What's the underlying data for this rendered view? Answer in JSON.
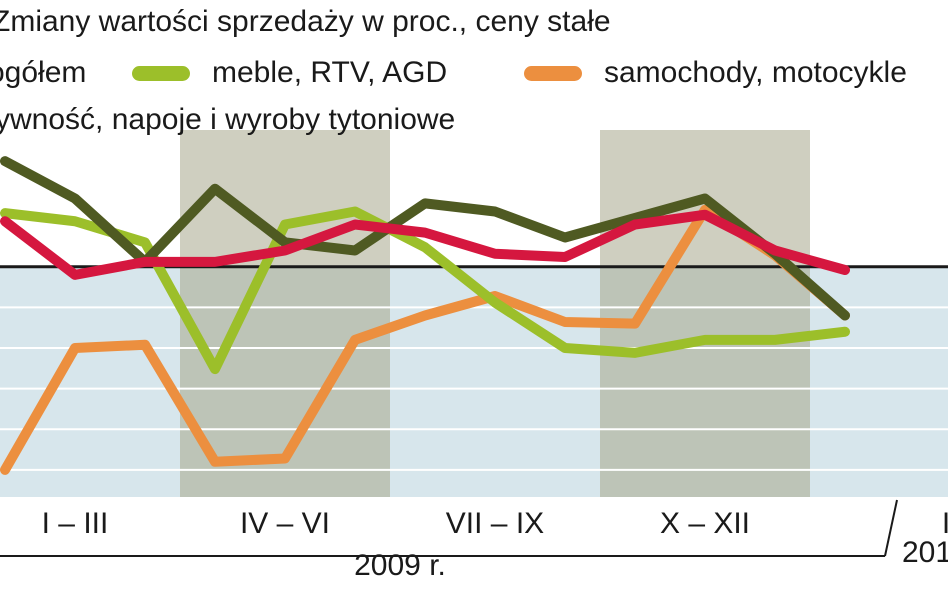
{
  "title": "Zmiany wartości sprzedaży w proc., ceny stałe",
  "legend": [
    {
      "label": "ogółem",
      "color": "#4f5a22"
    },
    {
      "label": "meble, RTV, AGD",
      "color": "#9cbf2a"
    },
    {
      "label": "samochody, motocykle",
      "color": "#ec8f3f"
    },
    {
      "label": "żywność, napoje i wyroby tytoniowe",
      "color": "#d5173f"
    }
  ],
  "colors": {
    "plot_bg": "#d7e6ec",
    "band_bg": "#a8a88c",
    "gridline": "#ffffff",
    "zero_line": "#1a1a1a"
  },
  "chart_data": {
    "type": "line",
    "title": "Zmiany wartości sprzedaży w proc., ceny stałe",
    "xlabel": "",
    "ylabel": "",
    "x": [
      1,
      2,
      3,
      4,
      5,
      6,
      7,
      8,
      9,
      10,
      11,
      12,
      13
    ],
    "x_groups": [
      {
        "label": "I – III",
        "months": [
          1,
          3
        ]
      },
      {
        "label": "IV – VI",
        "months": [
          4,
          6
        ]
      },
      {
        "label": "VII – IX",
        "months": [
          7,
          9
        ]
      },
      {
        "label": "X – XII",
        "months": [
          10,
          12
        ]
      },
      {
        "label": "I",
        "months": [
          13,
          13
        ]
      }
    ],
    "year_labels": [
      "2009 r.",
      "201"
    ],
    "ylim": [
      -13,
      7
    ],
    "grid": true,
    "shaded_quarters": [
      "IV – VI",
      "X – XII"
    ],
    "series": [
      {
        "name": "ogółem",
        "color": "#4f5a22",
        "values": [
          6.5,
          4.2,
          0.3,
          4.8,
          1.5,
          1.0,
          3.9,
          3.4,
          1.8,
          3.0,
          4.2,
          0.8,
          -3.0
        ]
      },
      {
        "name": "meble, RTV, AGD",
        "color": "#9cbf2a",
        "values": [
          3.3,
          2.8,
          1.5,
          -6.3,
          2.6,
          3.4,
          1.2,
          -2.2,
          -5.0,
          -5.3,
          -4.5,
          -4.5,
          -4.0
        ]
      },
      {
        "name": "samochody, motocykle",
        "color": "#ec8f3f",
        "values": [
          -12.5,
          -5.0,
          -4.8,
          -12.0,
          -11.8,
          -4.5,
          -3.0,
          -1.8,
          -3.4,
          -3.5,
          3.5,
          0.7,
          -3.0
        ]
      },
      {
        "name": "żywność, napoje i wyroby tytoniowe",
        "color": "#d5173f",
        "values": [
          2.8,
          -0.5,
          0.3,
          0.3,
          1.0,
          2.6,
          2.1,
          0.8,
          0.6,
          2.6,
          3.2,
          1.0,
          -0.2
        ]
      }
    ]
  }
}
